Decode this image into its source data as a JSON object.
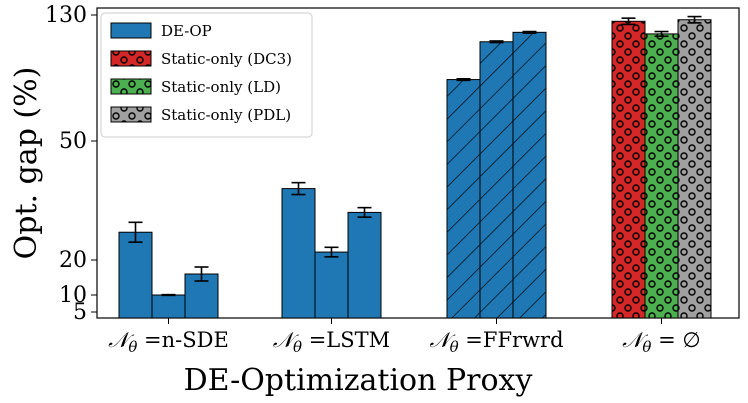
{
  "chart_data": {
    "type": "bar",
    "title": "",
    "xlabel": "DE-Optimization Proxy",
    "ylabel": "Opt. gap (%)",
    "ylim": [
      3,
      131
    ],
    "yticks": [
      5,
      10,
      20,
      50,
      130
    ],
    "grid": false,
    "legend_position": "top-left",
    "categories": [
      {
        "prefix": "𝒩",
        "sub": "θ",
        "suffix": " =n-SDE"
      },
      {
        "prefix": "𝒩",
        "sub": "θ",
        "suffix": " =LSTM"
      },
      {
        "prefix": "𝒩",
        "sub": "θ",
        "suffix": " =FFrwrd"
      },
      {
        "prefix": "𝒩",
        "sub": "θ",
        "suffix": " = ∅"
      }
    ],
    "legend": [
      {
        "label": "DE-OP",
        "color": "#1f77b4",
        "pattern": "none"
      },
      {
        "label": "Static-only (DC3)",
        "color": "#d62728",
        "pattern": "circles"
      },
      {
        "label": "Static-only (LD)",
        "color": "#4caf50",
        "pattern": "circles"
      },
      {
        "label": "Static-only (PDL)",
        "color": "#a0a0a0",
        "pattern": "circles"
      }
    ],
    "groups": [
      {
        "category_index": 0,
        "bars": [
          {
            "value": 27,
            "err": 2.5,
            "color": "#1f77b4",
            "pattern": "none"
          },
          {
            "value": 10,
            "err": 0.1,
            "color": "#1f77b4",
            "pattern": "none"
          },
          {
            "value": 16,
            "err": 2,
            "color": "#1f77b4",
            "pattern": "none"
          }
        ]
      },
      {
        "category_index": 1,
        "bars": [
          {
            "value": 38,
            "err": 1.5,
            "color": "#1f77b4",
            "pattern": "none"
          },
          {
            "value": 22,
            "err": 1.2,
            "color": "#1f77b4",
            "pattern": "none"
          },
          {
            "value": 32,
            "err": 1.2,
            "color": "#1f77b4",
            "pattern": "none"
          }
        ]
      },
      {
        "category_index": 2,
        "bars": [
          {
            "value": 89,
            "err": 0.5,
            "color": "#1f77b4",
            "pattern": "hatch"
          },
          {
            "value": 113,
            "err": 0.5,
            "color": "#1f77b4",
            "pattern": "hatch"
          },
          {
            "value": 119,
            "err": 0.5,
            "color": "#1f77b4",
            "pattern": "hatch"
          }
        ]
      },
      {
        "category_index": 3,
        "bars": [
          {
            "value": 126,
            "err": 2,
            "color": "#d62728",
            "pattern": "circles"
          },
          {
            "value": 118,
            "err": 1.5,
            "color": "#4caf50",
            "pattern": "circles"
          },
          {
            "value": 127,
            "err": 2,
            "color": "#a0a0a0",
            "pattern": "circles"
          }
        ]
      }
    ]
  }
}
